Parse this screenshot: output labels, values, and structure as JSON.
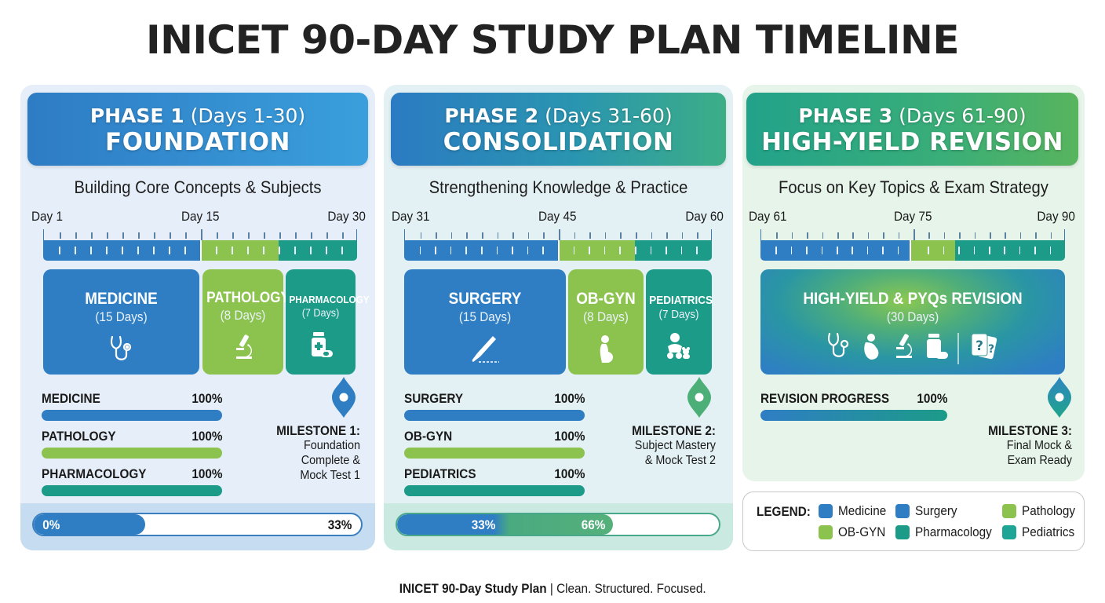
{
  "title": "INICET 90-DAY STUDY PLAN TIMELINE",
  "colors": {
    "medicine": "#2f7ec4",
    "surgery": "#2f7ec4",
    "pathology": "#8cc34f",
    "obgyn": "#8cc34f",
    "pharmacology": "#1c9b88",
    "pediatrics": "#1c9b88",
    "milestone1": "#2f7ec4",
    "milestone2": "#4caf78",
    "milestone3": "#2a9aa0"
  },
  "phases": [
    {
      "label": "PHASE 1",
      "range": "(Days 1-30)",
      "name": "FOUNDATION",
      "subtitle": "Building Core Concepts & Subjects",
      "days": {
        "start": "Day 1",
        "mid": "Day 15",
        "end": "Day 30"
      },
      "blocks": [
        {
          "name": "MEDICINE",
          "days": "(15 Days)",
          "icon": "stethoscope-icon"
        },
        {
          "name": "PATHOLOGY",
          "days": "(8 Days)",
          "icon": "microscope-icon"
        },
        {
          "name": "PHARMACOLOGY",
          "days": "(7 Days)",
          "icon": "medicine-bottle-icon"
        }
      ],
      "progress": [
        {
          "label": "MEDICINE",
          "value": "100%"
        },
        {
          "label": "PATHOLOGY",
          "value": "100%"
        },
        {
          "label": "PHARMACOLOGY",
          "value": "100%"
        }
      ],
      "milestone": {
        "title": "MILESTONE 1:",
        "lines": [
          "Foundation",
          "Complete &",
          "Mock Test 1"
        ]
      },
      "overall": {
        "start": "0%",
        "end": "33%"
      }
    },
    {
      "label": "PHASE 2",
      "range": "(Days 31-60)",
      "name": "CONSOLIDATION",
      "subtitle": "Strengthening Knowledge & Practice",
      "days": {
        "start": "Day 31",
        "mid": "Day 45",
        "end": "Day 60"
      },
      "blocks": [
        {
          "name": "SURGERY",
          "days": "(15 Days)",
          "icon": "scalpel-icon"
        },
        {
          "name": "OB-GYN",
          "days": "(8 Days)",
          "icon": "pregnant-woman-icon"
        },
        {
          "name": "PEDIATRICS",
          "days": "(7 Days)",
          "icon": "baby-toy-icon"
        }
      ],
      "progress": [
        {
          "label": "SURGERY",
          "value": "100%"
        },
        {
          "label": "OB-GYN",
          "value": "100%"
        },
        {
          "label": "PEDIATRICS",
          "value": "100%"
        }
      ],
      "milestone": {
        "title": "MILESTONE 2:",
        "lines": [
          "Subject Mastery",
          "& Mock Test 2"
        ]
      },
      "overall": {
        "start": "33%",
        "end": "66%"
      }
    },
    {
      "label": "PHASE 3",
      "range": "(Days 61-90)",
      "name": "HIGH-YIELD REVISION",
      "subtitle": "Focus on Key Topics & Exam Strategy",
      "days": {
        "start": "Day 61",
        "mid": "Day 75",
        "end": "Day 90"
      },
      "blocks": [
        {
          "name": "HIGH-YIELD & PYQs REVISION",
          "days": "(30 Days)",
          "icons": [
            "stethoscope-icon",
            "pregnant-woman-icon",
            "microscope-icon",
            "medicine-bottle-icon",
            "question-cards-icon"
          ]
        }
      ],
      "progress": [
        {
          "label": "REVISION PROGRESS",
          "value": "100%"
        }
      ],
      "milestone": {
        "title": "MILESTONE 3:",
        "lines": [
          "Final Mock &",
          "Exam Ready"
        ]
      }
    }
  ],
  "legend": {
    "title": "LEGEND:",
    "items": [
      {
        "label": "Medicine",
        "color": "#2f7ec4"
      },
      {
        "label": "Surgery",
        "color": "#2f7ec4"
      },
      {
        "label": "Pathology",
        "color": "#8cc34f"
      },
      {
        "label": "OB-GYN",
        "color": "#8cc34f"
      },
      {
        "label": "Pharmacology",
        "color": "#1c9b88"
      },
      {
        "label": "Pediatrics",
        "color": "#1c9b88"
      }
    ]
  },
  "footer": {
    "bold": "INICET 90-Day Study Plan",
    "rest": " | Clean. Structured. Focused."
  }
}
